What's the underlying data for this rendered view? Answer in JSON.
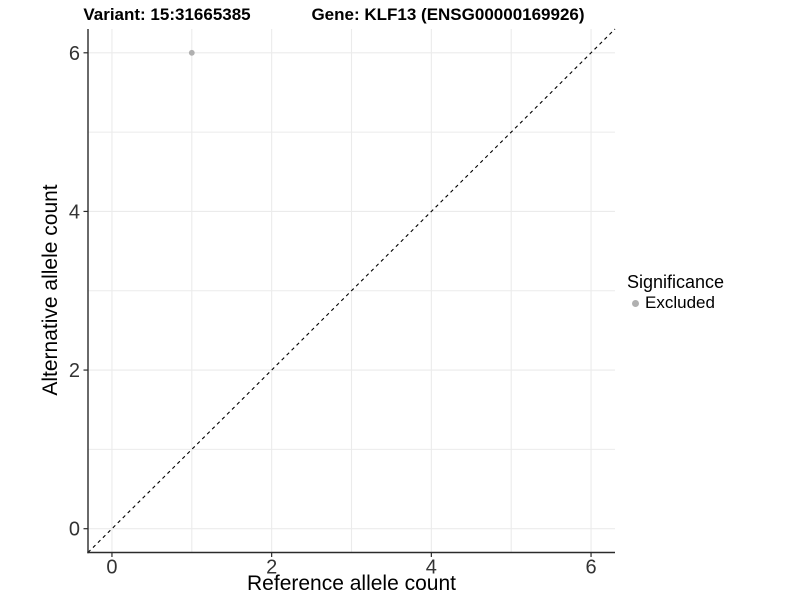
{
  "header": {
    "title_left": "Variant: 15:31665385",
    "title_right": "Gene: KLF13 (ENSG00000169926)"
  },
  "chart_data": {
    "type": "scatter",
    "title": "Variant: 15:31665385 — Gene: KLF13 (ENSG00000169926)",
    "xlabel": "Reference allele count",
    "ylabel": "Alternative allele count",
    "xlim": [
      -0.3,
      6.3
    ],
    "ylim": [
      -0.3,
      6.3
    ],
    "xticks": [
      0,
      2,
      4,
      6
    ],
    "yticks": [
      0,
      2,
      4,
      6
    ],
    "xticks_minor": [
      1,
      3,
      5
    ],
    "yticks_minor": [
      1,
      3,
      5
    ],
    "grid": "major+minor on white panel",
    "points": [
      {
        "x": 1,
        "y": 6,
        "series": "Excluded"
      }
    ],
    "identity_line": {
      "slope": 1,
      "intercept": 0,
      "style": "dashed",
      "color": "#000000"
    },
    "legend": {
      "title": "Significance",
      "position": "right",
      "items": [
        {
          "label": "Excluded",
          "color": "#b0b0b0"
        }
      ]
    },
    "colors": {
      "background": "#ffffff",
      "grid": "#ebebeb",
      "axis_line": "#2b2b2b",
      "tick_text": "#333333",
      "point": "#b0b0b0"
    }
  }
}
